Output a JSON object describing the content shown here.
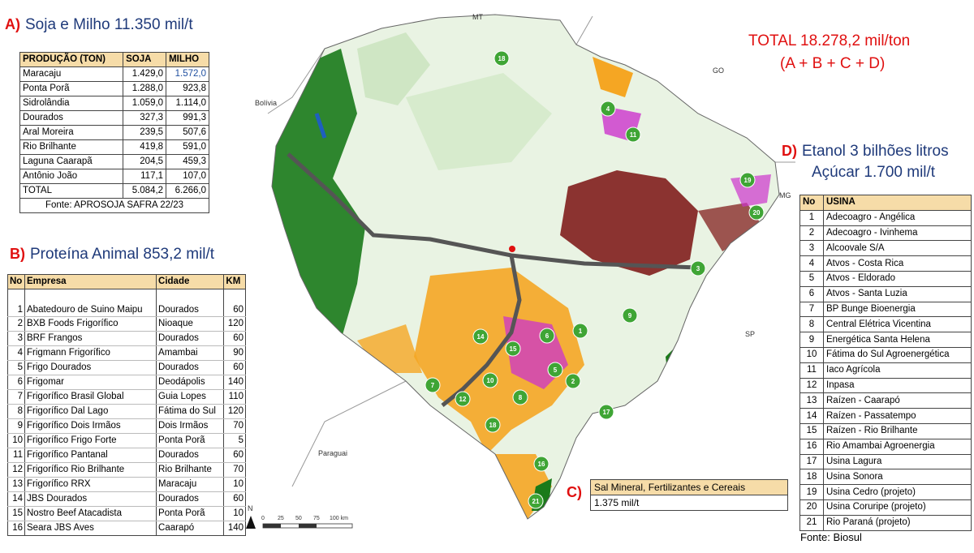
{
  "sectionA": {
    "letter": "A)",
    "title": "Soja e Milho 11.350 mil/t",
    "headers": [
      "PRODUÇÃO (TON)",
      "SOJA",
      "MILHO"
    ],
    "rows": [
      [
        "Maracaju",
        "1.429,0",
        "1.572,0"
      ],
      [
        "Ponta Porã",
        "1.288,0",
        "923,8"
      ],
      [
        "Sidrolândia",
        "1.059,0",
        "1.114,0"
      ],
      [
        "Dourados",
        "327,3",
        "991,3"
      ],
      [
        "Aral Moreira",
        "239,5",
        "507,6"
      ],
      [
        "Rio Brilhante",
        "419,8",
        "591,0"
      ],
      [
        "Laguna Caarapã",
        "204,5",
        "459,3"
      ],
      [
        "Antônio João",
        "117,1",
        "107,0"
      ],
      [
        "TOTAL",
        "5.084,2",
        "6.266,0"
      ]
    ],
    "source": "Fonte: APROSOJA SAFRA 22/23"
  },
  "sectionB": {
    "letter": "B)",
    "title": "Proteína Animal 853,2 mil/t",
    "headers": [
      "No",
      "Empresa",
      "Cidade",
      "KM"
    ],
    "rows": [
      [
        "1",
        "Abatedouro de Suino Maipu",
        "Dourados",
        "60"
      ],
      [
        "2",
        "BXB Foods Frigorífico",
        "Nioaque",
        "120"
      ],
      [
        "3",
        "BRF Frangos",
        "Dourados",
        "60"
      ],
      [
        "4",
        "Frigmann Frigorífico",
        "Amambai",
        "90"
      ],
      [
        "5",
        "Frigo Dourados",
        "Dourados",
        "60"
      ],
      [
        "6",
        "Frigomar",
        "Deodápolis",
        "140"
      ],
      [
        "7",
        "Frigorífico Brasil Global",
        "Guia Lopes",
        "110"
      ],
      [
        "8",
        "Frigorífico Dal Lago",
        "Fátima do Sul",
        "120"
      ],
      [
        "9",
        "Frigorífico Dois Irmãos",
        "Dois Irmãos",
        "70"
      ],
      [
        "10",
        "Frigorífico Frigo Forte",
        "Ponta Porã",
        "5"
      ],
      [
        "11",
        "Frigorífico Pantanal",
        "Dourados",
        "60"
      ],
      [
        "12",
        "Frigorífico Rio Brilhante",
        "Rio Brilhante",
        "70"
      ],
      [
        "13",
        "Frigorífico RRX",
        "Maracaju",
        "10"
      ],
      [
        "14",
        "JBS Dourados",
        "Dourados",
        "60"
      ],
      [
        "15",
        "Nostro Beef Atacadista",
        "Ponta Porã",
        "10"
      ],
      [
        "16",
        "Seara JBS Aves",
        "Caarapó",
        "140"
      ]
    ]
  },
  "sectionC": {
    "letter": "C)",
    "title": "Sal Mineral, Fertilizantes e Cereais",
    "value": "1.375 mil/t"
  },
  "sectionD": {
    "letter": "D)",
    "title_line1": "Etanol 3 bilhões litros",
    "title_line2": "Açúcar 1.700 mil/t",
    "headers": [
      "No",
      "USINA"
    ],
    "rows": [
      [
        "1",
        "Adecoagro - Angélica"
      ],
      [
        "2",
        "Adecoagro - Ivinhema"
      ],
      [
        "3",
        "Alcoovale S/A"
      ],
      [
        "4",
        "Atvos - Costa Rica"
      ],
      [
        "5",
        "Atvos - Eldorado"
      ],
      [
        "6",
        "Atvos - Santa Luzia"
      ],
      [
        "7",
        "BP Bunge Bioenergia"
      ],
      [
        "8",
        "Central Elétrica Vicentina"
      ],
      [
        "9",
        "Energética Santa Helena"
      ],
      [
        "10",
        "Fátima do Sul Agroenergética"
      ],
      [
        "11",
        "Iaco Agrícola"
      ],
      [
        "12",
        "Inpasa"
      ],
      [
        "13",
        "Raízen - Caarapó"
      ],
      [
        "14",
        "Raízen - Passatempo"
      ],
      [
        "15",
        "Raízen - Rio Brilhante"
      ],
      [
        "16",
        "Rio Amambai Agroenergia"
      ],
      [
        "17",
        "Usina Lagura"
      ],
      [
        "18",
        "Usina Sonora"
      ],
      [
        "19",
        "Usina Cedro (projeto)"
      ],
      [
        "20",
        "Usina Coruripe (projeto)"
      ],
      [
        "21",
        "Rio Paraná (projeto)"
      ]
    ],
    "source": "Fonte: Biosul"
  },
  "total": {
    "line1": "TOTAL 18.278,2 mil/ton",
    "line2": "(A + B + C + D)"
  },
  "map": {
    "labels": {
      "mt": "MT",
      "go": "GO",
      "bolivia": "Bolívia",
      "mg": "MG",
      "sp": "SP",
      "paraguai": "Paraguai"
    },
    "scale": {
      "north": "N",
      "ticks": [
        "0",
        "25",
        "50",
        "75",
        "100 km"
      ]
    },
    "pins": [
      "18",
      "4",
      "11",
      "19",
      "20",
      "3",
      "9",
      "1",
      "6",
      "14",
      "15",
      "5",
      "2",
      "10",
      "7",
      "12",
      "8",
      "18",
      "17",
      "16",
      "21"
    ],
    "colors": {
      "pin": "#3fa535",
      "soy": "#f5a623",
      "cane": "#7a1010",
      "forest": "#1a7a1a",
      "crop_pink": "#cc33cc",
      "road": "#555555",
      "water": "#1e5fbf"
    }
  }
}
